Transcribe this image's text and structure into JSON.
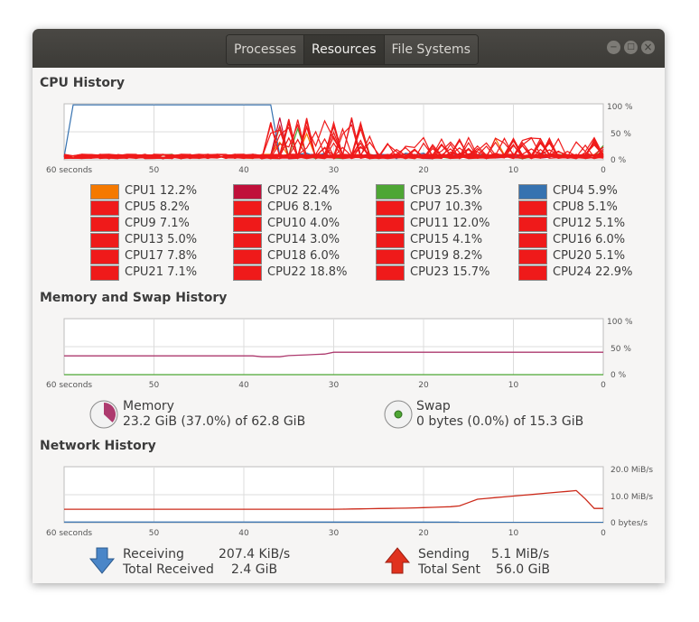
{
  "tabs": [
    {
      "label": "Processes",
      "active": false
    },
    {
      "label": "Resources",
      "active": true
    },
    {
      "label": "File Systems",
      "active": false
    }
  ],
  "window_controls": {
    "minimize": "−",
    "maximize": "□",
    "close": "×"
  },
  "cpu": {
    "title": "CPU History",
    "y_ticks": [
      "100 %",
      "50 %",
      "0 %"
    ],
    "x_ticks": [
      "60 seconds",
      "50",
      "40",
      "30",
      "20",
      "10",
      "0"
    ],
    "cores": [
      {
        "label": "CPU1",
        "value": "12.2%",
        "color": "#f57900"
      },
      {
        "label": "CPU2",
        "value": "22.4%",
        "color": "#c0103a"
      },
      {
        "label": "CPU3",
        "value": "25.3%",
        "color": "#4ea634"
      },
      {
        "label": "CPU4",
        "value": "5.9%",
        "color": "#3672b0"
      },
      {
        "label": "CPU5",
        "value": "8.2%",
        "color": "#ef1a1a"
      },
      {
        "label": "CPU6",
        "value": "8.1%",
        "color": "#ef1a1a"
      },
      {
        "label": "CPU7",
        "value": "10.3%",
        "color": "#ef1a1a"
      },
      {
        "label": "CPU8",
        "value": "5.1%",
        "color": "#ef1a1a"
      },
      {
        "label": "CPU9",
        "value": "7.1%",
        "color": "#ef1a1a"
      },
      {
        "label": "CPU10",
        "value": "4.0%",
        "color": "#ef1a1a"
      },
      {
        "label": "CPU11",
        "value": "12.0%",
        "color": "#ef1a1a"
      },
      {
        "label": "CPU12",
        "value": "5.1%",
        "color": "#ef1a1a"
      },
      {
        "label": "CPU13",
        "value": "5.0%",
        "color": "#ef1a1a"
      },
      {
        "label": "CPU14",
        "value": "3.0%",
        "color": "#ef1a1a"
      },
      {
        "label": "CPU15",
        "value": "4.1%",
        "color": "#ef1a1a"
      },
      {
        "label": "CPU16",
        "value": "6.0%",
        "color": "#ef1a1a"
      },
      {
        "label": "CPU17",
        "value": "7.8%",
        "color": "#ef1a1a"
      },
      {
        "label": "CPU18",
        "value": "6.0%",
        "color": "#ef1a1a"
      },
      {
        "label": "CPU19",
        "value": "8.2%",
        "color": "#ef1a1a"
      },
      {
        "label": "CPU20",
        "value": "5.1%",
        "color": "#ef1a1a"
      },
      {
        "label": "CPU21",
        "value": "7.1%",
        "color": "#ef1a1a"
      },
      {
        "label": "CPU22",
        "value": "18.8%",
        "color": "#ef1a1a"
      },
      {
        "label": "CPU23",
        "value": "15.7%",
        "color": "#ef1a1a"
      },
      {
        "label": "CPU24",
        "value": "22.9%",
        "color": "#ef1a1a"
      }
    ]
  },
  "memory": {
    "title": "Memory and Swap History",
    "y_ticks": [
      "100 %",
      "50 %",
      "0 %"
    ],
    "x_ticks": [
      "60 seconds",
      "50",
      "40",
      "30",
      "20",
      "10",
      "0"
    ],
    "memory_label": "Memory",
    "memory_value": "23.2 GiB (37.0%) of 62.8 GiB",
    "memory_fraction": 0.37,
    "memory_color": "#ad3a6e",
    "swap_label": "Swap",
    "swap_value": "0 bytes (0.0%) of 15.3 GiB",
    "swap_fraction": 0.0,
    "swap_color": "#4ea634"
  },
  "network": {
    "title": "Network History",
    "y_ticks": [
      "20.0 MiB/s",
      "10.0 MiB/s",
      "0 bytes/s"
    ],
    "x_ticks": [
      "60 seconds",
      "50",
      "40",
      "30",
      "20",
      "10",
      "0"
    ],
    "receiving_label": "Receiving",
    "receiving_value": "207.4 KiB/s",
    "total_received_label": "Total Received",
    "total_received_value": "2.4 GiB",
    "sending_label": "Sending",
    "sending_value": "5.1 MiB/s",
    "total_sent_label": "Total Sent",
    "total_sent_value": "56.0 GiB",
    "receive_color": "#3672b0",
    "send_color": "#cc2a1a"
  }
}
